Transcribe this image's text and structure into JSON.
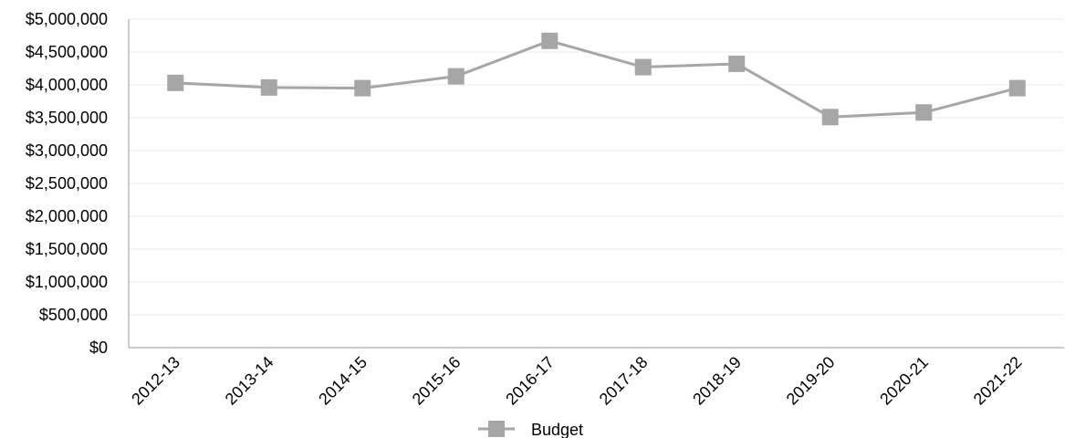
{
  "chart_data": {
    "type": "line",
    "categories": [
      "2012-13",
      "2013-14",
      "2014-15",
      "2015-16",
      "2016-17",
      "2017-18",
      "2018-19",
      "2019-20",
      "2020-21",
      "2021-22"
    ],
    "series": [
      {
        "name": "Budget",
        "values": [
          4030000,
          3960000,
          3950000,
          4130000,
          4670000,
          4270000,
          4320000,
          3510000,
          3580000,
          3950000
        ],
        "color": "#a6a6a6",
        "marker": "square"
      }
    ],
    "y_ticks": [
      "$0",
      "$500,000",
      "$1,000,000",
      "$1,500,000",
      "$2,000,000",
      "$2,500,000",
      "$3,000,000",
      "$3,500,000",
      "$4,000,000",
      "$4,500,000",
      "$5,000,000"
    ],
    "ylim": [
      0,
      5000000
    ],
    "grid": true,
    "legend_position": "bottom",
    "x_label_rotation": "-45deg"
  }
}
